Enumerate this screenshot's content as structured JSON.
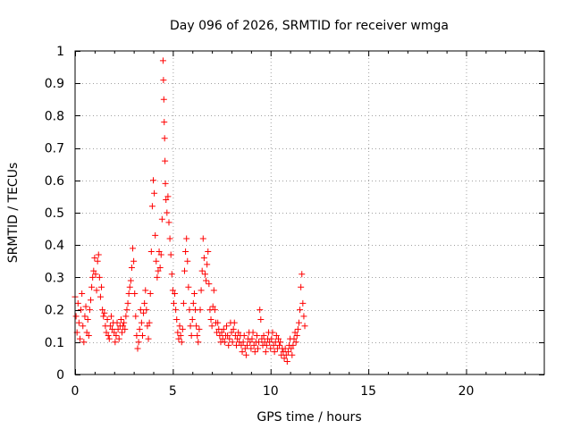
{
  "chart_data": {
    "type": "scatter",
    "title": "Day 096 of 2026, SRMTID for receiver wmga",
    "xlabel": "GPS time / hours",
    "ylabel": "SRMTID / TECUs",
    "xlim": [
      0,
      24
    ],
    "ylim": [
      0,
      1
    ],
    "xticks": [
      0,
      5,
      10,
      15,
      20
    ],
    "yticks": [
      0,
      0.1,
      0.2,
      0.3,
      0.4,
      0.5,
      0.6,
      0.7,
      0.8,
      0.9,
      1
    ],
    "xtick_labels": [
      "0",
      "5",
      "10",
      "15",
      "20"
    ],
    "ytick_labels": [
      "0",
      "0.1",
      "0.2",
      "0.3",
      "0.4",
      "0.5",
      "0.6",
      "0.7",
      "0.8",
      "0.9",
      "1"
    ],
    "grid": true,
    "marker": "+",
    "marker_color": "#ff0000",
    "series": [
      {
        "name": "SRMTID",
        "points": [
          [
            0.0,
            0.24
          ],
          [
            0.05,
            0.18
          ],
          [
            0.1,
            0.13
          ],
          [
            0.15,
            0.22
          ],
          [
            0.2,
            0.16
          ],
          [
            0.25,
            0.11
          ],
          [
            0.3,
            0.2
          ],
          [
            0.35,
            0.25
          ],
          [
            0.4,
            0.15
          ],
          [
            0.45,
            0.1
          ],
          [
            0.5,
            0.18
          ],
          [
            0.55,
            0.21
          ],
          [
            0.6,
            0.13
          ],
          [
            0.65,
            0.17
          ],
          [
            0.7,
            0.12
          ],
          [
            0.75,
            0.2
          ],
          [
            0.8,
            0.23
          ],
          [
            0.85,
            0.27
          ],
          [
            0.9,
            0.3
          ],
          [
            0.95,
            0.32
          ],
          [
            1.0,
            0.36
          ],
          [
            1.05,
            0.31
          ],
          [
            1.1,
            0.26
          ],
          [
            1.15,
            0.35
          ],
          [
            1.2,
            0.37
          ],
          [
            1.25,
            0.3
          ],
          [
            1.3,
            0.24
          ],
          [
            1.35,
            0.27
          ],
          [
            1.4,
            0.2
          ],
          [
            1.45,
            0.18
          ],
          [
            1.5,
            0.19
          ],
          [
            1.55,
            0.15
          ],
          [
            1.6,
            0.13
          ],
          [
            1.65,
            0.17
          ],
          [
            1.7,
            0.12
          ],
          [
            1.75,
            0.11
          ],
          [
            1.8,
            0.15
          ],
          [
            1.85,
            0.18
          ],
          [
            1.9,
            0.14
          ],
          [
            1.95,
            0.16
          ],
          [
            2.0,
            0.13
          ],
          [
            2.05,
            0.1
          ],
          [
            2.1,
            0.12
          ],
          [
            2.15,
            0.16
          ],
          [
            2.2,
            0.14
          ],
          [
            2.25,
            0.11
          ],
          [
            2.3,
            0.15
          ],
          [
            2.35,
            0.17
          ],
          [
            2.4,
            0.13
          ],
          [
            2.45,
            0.15
          ],
          [
            2.5,
            0.16
          ],
          [
            2.55,
            0.14
          ],
          [
            2.6,
            0.18
          ],
          [
            2.65,
            0.2
          ],
          [
            2.7,
            0.22
          ],
          [
            2.75,
            0.25
          ],
          [
            2.8,
            0.27
          ],
          [
            2.85,
            0.29
          ],
          [
            2.9,
            0.33
          ],
          [
            2.95,
            0.39
          ],
          [
            3.0,
            0.35
          ],
          [
            3.05,
            0.25
          ],
          [
            3.1,
            0.18
          ],
          [
            3.15,
            0.12
          ],
          [
            3.2,
            0.08
          ],
          [
            3.25,
            0.1
          ],
          [
            3.3,
            0.14
          ],
          [
            3.35,
            0.2
          ],
          [
            3.4,
            0.16
          ],
          [
            3.45,
            0.12
          ],
          [
            3.5,
            0.19
          ],
          [
            3.55,
            0.22
          ],
          [
            3.6,
            0.26
          ],
          [
            3.65,
            0.2
          ],
          [
            3.7,
            0.15
          ],
          [
            3.75,
            0.11
          ],
          [
            3.8,
            0.16
          ],
          [
            3.85,
            0.25
          ],
          [
            3.9,
            0.38
          ],
          [
            3.95,
            0.52
          ],
          [
            4.0,
            0.6
          ],
          [
            4.05,
            0.56
          ],
          [
            4.1,
            0.43
          ],
          [
            4.15,
            0.35
          ],
          [
            4.2,
            0.3
          ],
          [
            4.25,
            0.32
          ],
          [
            4.3,
            0.38
          ],
          [
            4.35,
            0.33
          ],
          [
            4.4,
            0.37
          ],
          [
            4.45,
            0.48
          ],
          [
            4.5,
            0.97
          ],
          [
            4.52,
            0.91
          ],
          [
            4.54,
            0.85
          ],
          [
            4.56,
            0.78
          ],
          [
            4.58,
            0.73
          ],
          [
            4.6,
            0.66
          ],
          [
            4.62,
            0.59
          ],
          [
            4.65,
            0.54
          ],
          [
            4.7,
            0.5
          ],
          [
            4.75,
            0.55
          ],
          [
            4.8,
            0.47
          ],
          [
            4.85,
            0.42
          ],
          [
            4.9,
            0.37
          ],
          [
            4.95,
            0.31
          ],
          [
            5.0,
            0.26
          ],
          [
            5.05,
            0.22
          ],
          [
            5.1,
            0.25
          ],
          [
            5.15,
            0.2
          ],
          [
            5.2,
            0.17
          ],
          [
            5.25,
            0.13
          ],
          [
            5.3,
            0.11
          ],
          [
            5.35,
            0.15
          ],
          [
            5.4,
            0.12
          ],
          [
            5.45,
            0.1
          ],
          [
            5.5,
            0.14
          ],
          [
            5.55,
            0.22
          ],
          [
            5.6,
            0.32
          ],
          [
            5.65,
            0.38
          ],
          [
            5.7,
            0.42
          ],
          [
            5.75,
            0.35
          ],
          [
            5.8,
            0.27
          ],
          [
            5.85,
            0.2
          ],
          [
            5.9,
            0.15
          ],
          [
            5.95,
            0.12
          ],
          [
            6.0,
            0.17
          ],
          [
            6.05,
            0.22
          ],
          [
            6.1,
            0.25
          ],
          [
            6.15,
            0.2
          ],
          [
            6.2,
            0.15
          ],
          [
            6.25,
            0.12
          ],
          [
            6.3,
            0.1
          ],
          [
            6.35,
            0.14
          ],
          [
            6.4,
            0.2
          ],
          [
            6.45,
            0.26
          ],
          [
            6.5,
            0.32
          ],
          [
            6.55,
            0.42
          ],
          [
            6.6,
            0.36
          ],
          [
            6.65,
            0.31
          ],
          [
            6.7,
            0.29
          ],
          [
            6.75,
            0.34
          ],
          [
            6.8,
            0.38
          ],
          [
            6.85,
            0.28
          ],
          [
            6.9,
            0.2
          ],
          [
            6.95,
            0.17
          ],
          [
            7.0,
            0.15
          ],
          [
            7.05,
            0.21
          ],
          [
            7.1,
            0.26
          ],
          [
            7.15,
            0.2
          ],
          [
            7.2,
            0.16
          ],
          [
            7.25,
            0.13
          ],
          [
            7.3,
            0.16
          ],
          [
            7.35,
            0.14
          ],
          [
            7.4,
            0.12
          ],
          [
            7.45,
            0.1
          ],
          [
            7.5,
            0.13
          ],
          [
            7.55,
            0.11
          ],
          [
            7.6,
            0.14
          ],
          [
            7.65,
            0.1
          ],
          [
            7.7,
            0.12
          ],
          [
            7.75,
            0.15
          ],
          [
            7.8,
            0.12
          ],
          [
            7.85,
            0.09
          ],
          [
            7.9,
            0.11
          ],
          [
            7.95,
            0.16
          ],
          [
            8.0,
            0.13
          ],
          [
            8.05,
            0.1
          ],
          [
            8.1,
            0.14
          ],
          [
            8.15,
            0.16
          ],
          [
            8.2,
            0.12
          ],
          [
            8.25,
            0.09
          ],
          [
            8.3,
            0.11
          ],
          [
            8.35,
            0.13
          ],
          [
            8.4,
            0.1
          ],
          [
            8.45,
            0.12
          ],
          [
            8.5,
            0.09
          ],
          [
            8.55,
            0.07
          ],
          [
            8.6,
            0.1
          ],
          [
            8.65,
            0.12
          ],
          [
            8.7,
            0.08
          ],
          [
            8.75,
            0.06
          ],
          [
            8.8,
            0.09
          ],
          [
            8.85,
            0.11
          ],
          [
            8.9,
            0.13
          ],
          [
            8.95,
            0.1
          ],
          [
            9.0,
            0.08
          ],
          [
            9.05,
            0.11
          ],
          [
            9.1,
            0.13
          ],
          [
            9.15,
            0.09
          ],
          [
            9.2,
            0.07
          ],
          [
            9.25,
            0.1
          ],
          [
            9.3,
            0.12
          ],
          [
            9.35,
            0.08
          ],
          [
            9.4,
            0.1
          ],
          [
            9.45,
            0.2
          ],
          [
            9.5,
            0.17
          ],
          [
            9.55,
            0.11
          ],
          [
            9.6,
            0.09
          ],
          [
            9.65,
            0.12
          ],
          [
            9.7,
            0.1
          ],
          [
            9.75,
            0.07
          ],
          [
            9.8,
            0.09
          ],
          [
            9.85,
            0.11
          ],
          [
            9.9,
            0.13
          ],
          [
            9.95,
            0.1
          ],
          [
            10.0,
            0.08
          ],
          [
            10.05,
            0.11
          ],
          [
            10.1,
            0.13
          ],
          [
            10.15,
            0.09
          ],
          [
            10.2,
            0.07
          ],
          [
            10.25,
            0.1
          ],
          [
            10.3,
            0.12
          ],
          [
            10.35,
            0.08
          ],
          [
            10.4,
            0.11
          ],
          [
            10.45,
            0.09
          ],
          [
            10.5,
            0.1
          ],
          [
            10.55,
            0.06
          ],
          [
            10.6,
            0.08
          ],
          [
            10.65,
            0.07
          ],
          [
            10.7,
            0.05
          ],
          [
            10.75,
            0.08
          ],
          [
            10.8,
            0.06
          ],
          [
            10.85,
            0.04
          ],
          [
            10.9,
            0.07
          ],
          [
            10.95,
            0.09
          ],
          [
            11.0,
            0.11
          ],
          [
            11.05,
            0.08
          ],
          [
            11.1,
            0.06
          ],
          [
            11.15,
            0.09
          ],
          [
            11.2,
            0.11
          ],
          [
            11.25,
            0.13
          ],
          [
            11.3,
            0.1
          ],
          [
            11.35,
            0.12
          ],
          [
            11.4,
            0.14
          ],
          [
            11.45,
            0.16
          ],
          [
            11.5,
            0.2
          ],
          [
            11.55,
            0.27
          ],
          [
            11.6,
            0.31
          ],
          [
            11.65,
            0.22
          ],
          [
            11.7,
            0.18
          ],
          [
            11.75,
            0.15
          ]
        ]
      }
    ]
  }
}
